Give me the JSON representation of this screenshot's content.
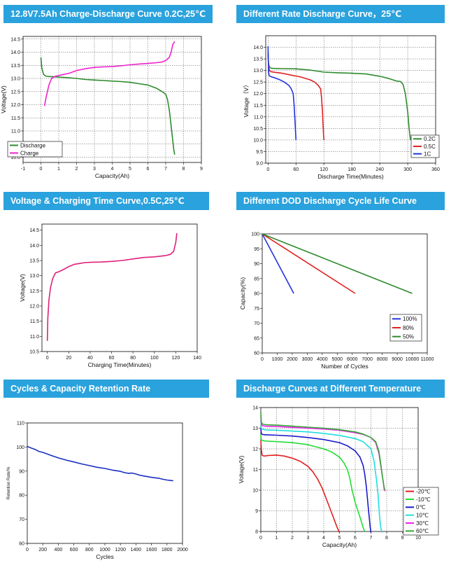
{
  "panels": [
    {
      "id": "p1",
      "banner": "12.8V7.5Ah Charge-Discharge Curve 0.2C,25℃"
    },
    {
      "id": "p2",
      "banner": "Different  Rate Discharge Curve，25℃"
    },
    {
      "id": "p3",
      "banner": "Voltage & Charging Time Curve,0.5C,25℃"
    },
    {
      "id": "p4",
      "banner": "Different DOD Discharge Cycle Life Curve"
    },
    {
      "id": "p5",
      "banner": "Cycles & Capacity Retention Rate"
    },
    {
      "id": "p6",
      "banner": "Discharge Curves at Different Temperature"
    }
  ],
  "chart_data": [
    {
      "id": "p1",
      "type": "line",
      "grid": true,
      "legend_position": "bottom-left",
      "title": "",
      "xlabel": "Capacity(Ah)",
      "ylabel": "Voltage(V)",
      "xlim": [
        -1,
        9
      ],
      "ylim": [
        9.8,
        14.6
      ],
      "xticks": [
        "-1",
        "0",
        "1",
        "2",
        "3",
        "4",
        "5",
        "6",
        "7",
        "8",
        "9"
      ],
      "yticks": [
        "10.0",
        "10.5",
        "11.0",
        "11.5",
        "12.0",
        "12.5",
        "13.0",
        "13.5",
        "14.0",
        "14.5"
      ],
      "series": [
        {
          "name": "Discharge",
          "color": "#2e8b2e",
          "x": [
            0,
            0.05,
            0.15,
            0.3,
            0.6,
            1,
            1.5,
            2,
            2.5,
            3,
            3.5,
            4,
            4.5,
            5,
            5.5,
            6,
            6.5,
            6.8,
            7,
            7.1,
            7.2,
            7.3,
            7.4,
            7.45,
            7.5
          ],
          "y": [
            13.8,
            13.4,
            13.15,
            13.08,
            13.07,
            13.05,
            13.03,
            13.0,
            12.96,
            12.94,
            12.92,
            12.9,
            12.88,
            12.85,
            12.8,
            12.75,
            12.62,
            12.5,
            12.4,
            12.2,
            11.8,
            11.2,
            10.6,
            10.3,
            10.1
          ]
        },
        {
          "name": "Charge",
          "color": "#ee22cc",
          "x": [
            0.2,
            0.3,
            0.45,
            0.6,
            0.8,
            1.2,
            1.6,
            2,
            2.5,
            3,
            3.5,
            4,
            4.5,
            5,
            5.5,
            6,
            6.5,
            6.8,
            7,
            7.2,
            7.3,
            7.4,
            7.5
          ],
          "y": [
            11.95,
            12.3,
            12.75,
            13.0,
            13.08,
            13.14,
            13.2,
            13.3,
            13.37,
            13.42,
            13.44,
            13.45,
            13.48,
            13.52,
            13.55,
            13.57,
            13.6,
            13.63,
            13.68,
            13.8,
            14.0,
            14.3,
            14.4
          ]
        }
      ]
    },
    {
      "id": "p2",
      "type": "line",
      "grid": true,
      "legend_position": "bottom-right",
      "title": "",
      "xlabel": "Discharge Time(Minutes)",
      "ylabel": "Voltage（V）",
      "xlim": [
        -5,
        360
      ],
      "ylim": [
        9.0,
        14.5
      ],
      "xticks": [
        "0",
        "60",
        "120",
        "180",
        "240",
        "300",
        "360"
      ],
      "yticks": [
        "9.0",
        "9.5",
        "10.0",
        "10.5",
        "11.0",
        "11.5",
        "12.0",
        "12.5",
        "13.0",
        "13.5",
        "14.0"
      ],
      "series": [
        {
          "name": "0.2C",
          "color": "#2e8b2e",
          "x": [
            0,
            1,
            3,
            6,
            12,
            30,
            60,
            90,
            120,
            150,
            180,
            210,
            240,
            260,
            275,
            285,
            290,
            295,
            300,
            303,
            306
          ],
          "y": [
            13.8,
            13.3,
            13.15,
            13.1,
            13.09,
            13.08,
            13.07,
            13.02,
            12.93,
            12.9,
            12.88,
            12.85,
            12.75,
            12.65,
            12.55,
            12.52,
            12.4,
            12.0,
            11.2,
            10.5,
            10.0
          ]
        },
        {
          "name": "0.5C",
          "color": "#e02020",
          "x": [
            0,
            1,
            3,
            6,
            15,
            30,
            50,
            70,
            90,
            100,
            108,
            113,
            115,
            117,
            118,
            119,
            120
          ],
          "y": [
            13.7,
            13.2,
            13.0,
            12.95,
            12.92,
            12.88,
            12.8,
            12.72,
            12.6,
            12.5,
            12.35,
            12.2,
            11.8,
            11.2,
            10.7,
            10.3,
            10.0
          ]
        },
        {
          "name": "1C",
          "color": "#2233dd",
          "x": [
            0,
            0.5,
            1,
            2,
            4,
            8,
            15,
            25,
            35,
            45,
            50,
            54,
            56,
            58,
            59,
            60
          ],
          "y": [
            14.05,
            13.5,
            13.0,
            12.8,
            12.75,
            12.72,
            12.68,
            12.6,
            12.5,
            12.35,
            12.2,
            12.0,
            11.5,
            10.8,
            10.4,
            10.0
          ]
        }
      ]
    },
    {
      "id": "p3",
      "type": "line",
      "grid": false,
      "legend_position": "none",
      "title": "",
      "xlabel": "Charging Time(Minutes)",
      "ylabel": "Voltage(V)",
      "xlim": [
        -5,
        140
      ],
      "ylim": [
        10.5,
        14.7
      ],
      "xticks": [
        "0",
        "20",
        "40",
        "60",
        "80",
        "100",
        "120",
        "140"
      ],
      "yticks": [
        "10.5",
        "11.0",
        "11.5",
        "12.0",
        "12.5",
        "13.0",
        "13.5",
        "14.0",
        "14.5"
      ],
      "series": [
        {
          "name": "",
          "color": "#e0207a",
          "x": [
            0,
            0.5,
            1.5,
            3,
            5,
            7,
            8,
            10,
            15,
            20,
            25,
            30,
            35,
            40,
            50,
            60,
            70,
            80,
            90,
            100,
            110,
            115,
            118,
            120,
            121
          ],
          "y": [
            10.85,
            11.6,
            12.2,
            12.6,
            12.9,
            13.05,
            13.1,
            13.12,
            13.2,
            13.3,
            13.37,
            13.4,
            13.43,
            13.44,
            13.45,
            13.47,
            13.5,
            13.55,
            13.6,
            13.62,
            13.66,
            13.7,
            13.8,
            14.1,
            14.4
          ]
        }
      ]
    },
    {
      "id": "p4",
      "type": "line",
      "grid": false,
      "legend_position": "bottom-right",
      "title": "",
      "xlabel": "Number of Cycles",
      "ylabel": "Capacity(%)",
      "xlim": [
        0,
        11000
      ],
      "ylim": [
        60,
        100
      ],
      "xticks": [
        "0",
        "1000",
        "2000",
        "3000",
        "4000",
        "5000",
        "6000",
        "7000",
        "8000",
        "9000",
        "10000",
        "11000"
      ],
      "yticks": [
        "60",
        "65",
        "70",
        "75",
        "80",
        "85",
        "90",
        "95",
        "100"
      ],
      "series": [
        {
          "name": "100%",
          "color": "#2233dd",
          "x": [
            0,
            2100
          ],
          "y": [
            100,
            80
          ]
        },
        {
          "name": "80%",
          "color": "#e02020",
          "x": [
            0,
            6200
          ],
          "y": [
            100,
            80
          ]
        },
        {
          "name": "50%",
          "color": "#2e8b2e",
          "x": [
            0,
            10000
          ],
          "y": [
            100,
            80
          ]
        }
      ]
    },
    {
      "id": "p5",
      "type": "line",
      "grid": false,
      "legend_position": "none",
      "title": "",
      "xlabel": "Cycles",
      "ylabel": "Retention Rate/%",
      "xlim": [
        0,
        2000
      ],
      "ylim": [
        60,
        110
      ],
      "xticks": [
        "0",
        "200",
        "400",
        "600",
        "800",
        "1000",
        "1200",
        "1400",
        "1600",
        "1800",
        "2000"
      ],
      "yticks": [
        "60",
        "70",
        "80",
        "90",
        "100",
        "110"
      ],
      "series": [
        {
          "name": "",
          "color": "#1a2fbf",
          "x": [
            0,
            50,
            100,
            150,
            200,
            250,
            300,
            400,
            500,
            600,
            700,
            800,
            900,
            1000,
            1100,
            1200,
            1250,
            1300,
            1350,
            1400,
            1450,
            1500,
            1600,
            1700,
            1750,
            1800,
            1850,
            1880
          ],
          "y": [
            100.3,
            99.6,
            99.0,
            98.2,
            97.8,
            97.2,
            96.6,
            95.5,
            94.6,
            93.8,
            93.0,
            92.3,
            91.6,
            91.1,
            90.4,
            89.9,
            89.4,
            89.1,
            89.2,
            88.8,
            88.3,
            88.0,
            87.4,
            87.0,
            86.6,
            86.3,
            86.1,
            86.0
          ]
        }
      ]
    },
    {
      "id": "p6",
      "type": "line",
      "grid": true,
      "legend_position": "bottom-right",
      "title": "",
      "xlabel": "Capacity(Ah)",
      "ylabel": "Voltage(V)",
      "xlim": [
        0,
        10
      ],
      "ylim": [
        8,
        14
      ],
      "xticks": [
        "0",
        "1",
        "2",
        "3",
        "4",
        "5",
        "6",
        "7",
        "8",
        "9",
        "10"
      ],
      "yticks": [
        "8",
        "9",
        "10",
        "11",
        "12",
        "13",
        "14"
      ],
      "series": [
        {
          "name": "-20℃",
          "color": "#e02020",
          "x": [
            0,
            0.03,
            0.08,
            0.2,
            0.5,
            1,
            1.5,
            2,
            2.5,
            3,
            3.3,
            3.6,
            3.9,
            4.1,
            4.3,
            4.5,
            4.7,
            4.85,
            5.0
          ],
          "y": [
            12.4,
            12.0,
            11.7,
            11.65,
            11.68,
            11.7,
            11.65,
            11.55,
            11.4,
            11.15,
            10.9,
            10.55,
            10.1,
            9.7,
            9.3,
            8.9,
            8.5,
            8.2,
            7.95
          ]
        },
        {
          "name": "-10℃",
          "color": "#22dd33",
          "x": [
            0,
            0.03,
            0.1,
            0.3,
            1,
            2,
            3,
            4,
            4.5,
            5,
            5.3,
            5.5,
            5.65,
            5.8,
            6.0,
            6.3,
            6.5,
            6.6
          ],
          "y": [
            12.7,
            12.45,
            12.4,
            12.38,
            12.35,
            12.3,
            12.2,
            12.0,
            11.85,
            11.6,
            11.3,
            11.0,
            10.6,
            10.0,
            9.4,
            8.7,
            8.2,
            8.0
          ]
        },
        {
          "name": "0℃",
          "color": "#1a1acc",
          "x": [
            0,
            0.03,
            0.1,
            0.3,
            1,
            2,
            3,
            4,
            5,
            5.5,
            6,
            6.3,
            6.5,
            6.6,
            6.7,
            6.75,
            6.8,
            6.85,
            6.9,
            6.95,
            7.0
          ],
          "y": [
            13.0,
            12.75,
            12.7,
            12.68,
            12.66,
            12.62,
            12.55,
            12.45,
            12.3,
            12.15,
            11.9,
            11.6,
            11.2,
            10.8,
            10.2,
            9.8,
            9.4,
            9.0,
            8.6,
            8.2,
            7.95
          ]
        },
        {
          "name": "10℃",
          "color": "#22dddd",
          "x": [
            0,
            0.03,
            0.1,
            0.3,
            1,
            2,
            3,
            4,
            5,
            6,
            6.5,
            7,
            7.2,
            7.35,
            7.45,
            7.5,
            7.55,
            7.6,
            7.65,
            7.7
          ],
          "y": [
            13.4,
            13.0,
            12.95,
            12.92,
            12.9,
            12.86,
            12.82,
            12.75,
            12.65,
            12.5,
            12.35,
            12.0,
            11.4,
            10.5,
            9.8,
            9.2,
            8.7,
            8.3,
            8.1,
            7.95
          ]
        },
        {
          "name": "30℃",
          "color": "#ee22ee",
          "x": [
            0,
            0.03,
            0.1,
            0.3,
            1,
            2,
            3,
            4,
            5,
            6,
            6.5,
            7,
            7.3,
            7.5,
            7.6,
            7.7,
            7.8,
            7.85,
            7.9
          ],
          "y": [
            13.6,
            13.2,
            13.12,
            13.1,
            13.08,
            13.04,
            13.0,
            12.96,
            12.9,
            12.78,
            12.7,
            12.55,
            12.3,
            11.8,
            11.3,
            10.8,
            10.3,
            10.1,
            9.95
          ]
        },
        {
          "name": "60℃",
          "color": "#33aa33",
          "x": [
            0,
            0.03,
            0.1,
            0.3,
            1,
            2,
            3,
            4,
            5,
            6,
            6.5,
            7,
            7.3,
            7.5,
            7.6,
            7.7,
            7.8,
            7.85
          ],
          "y": [
            13.75,
            13.3,
            13.2,
            13.17,
            13.15,
            13.1,
            13.05,
            13.0,
            12.93,
            12.82,
            12.72,
            12.55,
            12.35,
            11.9,
            11.4,
            10.8,
            10.3,
            10.0
          ]
        }
      ]
    }
  ]
}
